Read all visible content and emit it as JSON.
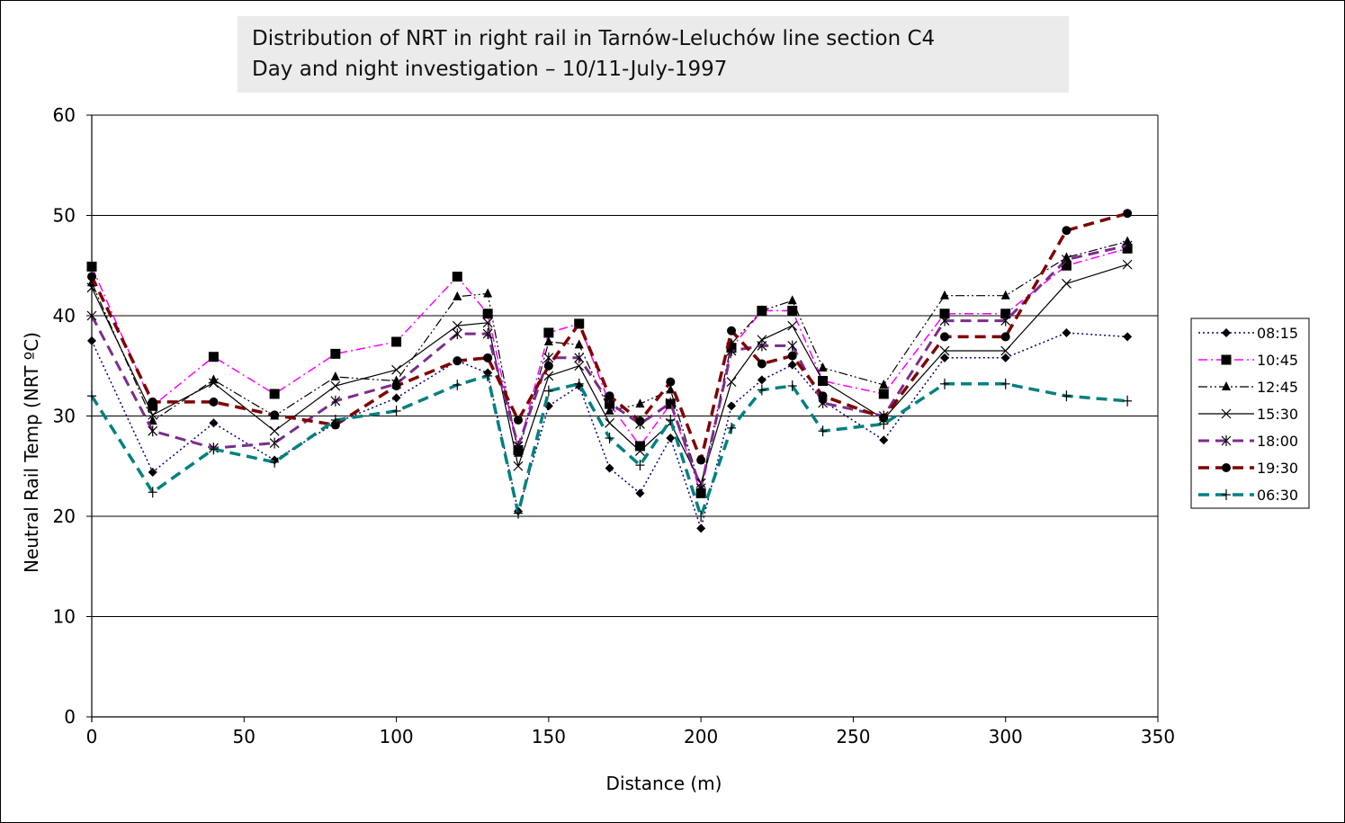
{
  "chart_data": {
    "type": "line",
    "title": "Distribution of NRT in right rail in Tarnów-Leluchów line section C4",
    "subtitle": "Day and night investigation – 10/11-July-1997",
    "xlabel": "Distance (m)",
    "ylabel": "Neutral Rail Temp (NRT ºC)",
    "xlim": [
      0,
      350
    ],
    "ylim": [
      0,
      60
    ],
    "xticks": [
      0,
      50,
      100,
      150,
      200,
      250,
      300,
      350
    ],
    "yticks": [
      0,
      10,
      20,
      30,
      40,
      50,
      60
    ],
    "grid": "horizontal",
    "legend_position": "right",
    "series": [
      {
        "name": "08:15",
        "color": "#000080",
        "marker": "diamond",
        "dash": "dotted",
        "width": 1.5,
        "points": [
          [
            0,
            37.5
          ],
          [
            20,
            24.4
          ],
          [
            40,
            29.3
          ],
          [
            60,
            25.6
          ],
          [
            80,
            29.3
          ],
          [
            100,
            31.8
          ],
          [
            120,
            35.5
          ],
          [
            130,
            34.3
          ],
          [
            140,
            20.5
          ],
          [
            150,
            31.0
          ],
          [
            160,
            33.0
          ],
          [
            170,
            24.8
          ],
          [
            180,
            22.3
          ],
          [
            190,
            27.8
          ],
          [
            200,
            18.8
          ],
          [
            210,
            31.0
          ],
          [
            220,
            33.6
          ],
          [
            230,
            35.1
          ],
          [
            240,
            31.5
          ],
          [
            260,
            27.6
          ],
          [
            280,
            35.8
          ],
          [
            300,
            35.8
          ],
          [
            320,
            38.3
          ],
          [
            340,
            37.9
          ]
        ]
      },
      {
        "name": "10:45",
        "color": "#ff00ff",
        "marker": "square",
        "dash": "dashdot",
        "width": 1.5,
        "points": [
          [
            0,
            44.9
          ],
          [
            20,
            31.0
          ],
          [
            40,
            35.9
          ],
          [
            60,
            32.2
          ],
          [
            80,
            36.2
          ],
          [
            100,
            37.4
          ],
          [
            120,
            43.9
          ],
          [
            130,
            40.2
          ],
          [
            140,
            26.6
          ],
          [
            150,
            38.3
          ],
          [
            160,
            39.2
          ],
          [
            170,
            31.2
          ],
          [
            180,
            27.0
          ],
          [
            190,
            31.2
          ],
          [
            200,
            22.3
          ],
          [
            210,
            36.8
          ],
          [
            220,
            40.5
          ],
          [
            230,
            40.5
          ],
          [
            240,
            33.5
          ],
          [
            260,
            32.2
          ],
          [
            280,
            40.2
          ],
          [
            300,
            40.2
          ],
          [
            320,
            45.0
          ],
          [
            340,
            46.7
          ]
        ]
      },
      {
        "name": "12:45",
        "color": "#000000",
        "marker": "triangle",
        "dash": "dashdotdot",
        "width": 1.2,
        "points": [
          [
            0,
            43.3
          ],
          [
            20,
            29.5
          ],
          [
            40,
            33.6
          ],
          [
            60,
            30.0
          ],
          [
            80,
            33.9
          ],
          [
            100,
            33.5
          ],
          [
            120,
            41.9
          ],
          [
            130,
            42.2
          ],
          [
            140,
            26.3
          ],
          [
            150,
            37.4
          ],
          [
            160,
            37.1
          ],
          [
            170,
            30.5
          ],
          [
            180,
            31.2
          ],
          [
            190,
            32.6
          ],
          [
            200,
            22.8
          ],
          [
            210,
            37.2
          ],
          [
            220,
            40.5
          ],
          [
            230,
            41.5
          ],
          [
            240,
            34.8
          ],
          [
            260,
            33.1
          ],
          [
            280,
            42.0
          ],
          [
            300,
            42.0
          ],
          [
            320,
            45.8
          ],
          [
            340,
            47.4
          ]
        ]
      },
      {
        "name": "15:30",
        "color": "#000000",
        "marker": "x",
        "dash": "solid",
        "width": 1.2,
        "points": [
          [
            0,
            42.8
          ],
          [
            20,
            30.1
          ],
          [
            40,
            33.3
          ],
          [
            60,
            28.5
          ],
          [
            80,
            33.0
          ],
          [
            100,
            34.6
          ],
          [
            120,
            39.0
          ],
          [
            130,
            39.3
          ],
          [
            140,
            25.0
          ],
          [
            150,
            34.0
          ],
          [
            160,
            35.0
          ],
          [
            170,
            29.3
          ],
          [
            180,
            26.5
          ],
          [
            190,
            29.3
          ],
          [
            200,
            23.3
          ],
          [
            210,
            33.4
          ],
          [
            220,
            37.6
          ],
          [
            230,
            39.0
          ],
          [
            240,
            33.5
          ],
          [
            260,
            29.7
          ],
          [
            280,
            36.5
          ],
          [
            300,
            36.5
          ],
          [
            320,
            43.2
          ],
          [
            340,
            45.1
          ]
        ]
      },
      {
        "name": "18:00",
        "color": "#7b2c8c",
        "marker": "star",
        "dash": "dashed",
        "width": 3,
        "points": [
          [
            0,
            40.0
          ],
          [
            20,
            28.5
          ],
          [
            40,
            26.8
          ],
          [
            60,
            27.3
          ],
          [
            80,
            31.5
          ],
          [
            100,
            33.2
          ],
          [
            120,
            38.2
          ],
          [
            130,
            38.2
          ],
          [
            140,
            27.0
          ],
          [
            150,
            35.8
          ],
          [
            160,
            35.8
          ],
          [
            170,
            31.3
          ],
          [
            180,
            29.2
          ],
          [
            190,
            31.3
          ],
          [
            200,
            22.8
          ],
          [
            210,
            36.5
          ],
          [
            220,
            37.0
          ],
          [
            230,
            37.0
          ],
          [
            240,
            31.3
          ],
          [
            260,
            30.0
          ],
          [
            280,
            39.5
          ],
          [
            300,
            39.5
          ],
          [
            320,
            45.6
          ],
          [
            340,
            47.0
          ]
        ]
      },
      {
        "name": "19:30",
        "color": "#7f0000",
        "marker": "circle",
        "dash": "dashed",
        "width": 3.5,
        "points": [
          [
            0,
            43.9
          ],
          [
            20,
            31.4
          ],
          [
            40,
            31.4
          ],
          [
            60,
            30.1
          ],
          [
            80,
            29.1
          ],
          [
            100,
            33.0
          ],
          [
            120,
            35.5
          ],
          [
            130,
            35.8
          ],
          [
            140,
            29.6
          ],
          [
            150,
            35.0
          ],
          [
            160,
            39.2
          ],
          [
            170,
            32.0
          ],
          [
            180,
            29.5
          ],
          [
            190,
            33.4
          ],
          [
            200,
            25.6
          ],
          [
            210,
            38.5
          ],
          [
            220,
            35.2
          ],
          [
            230,
            36.0
          ],
          [
            240,
            32.0
          ],
          [
            260,
            29.8
          ],
          [
            280,
            37.9
          ],
          [
            300,
            37.9
          ],
          [
            320,
            48.5
          ],
          [
            340,
            50.2
          ]
        ]
      },
      {
        "name": "06:30",
        "color": "#008080",
        "marker": "plus",
        "dash": "dashed",
        "width": 3.5,
        "points": [
          [
            0,
            32.0
          ],
          [
            20,
            22.4
          ],
          [
            40,
            26.7
          ],
          [
            60,
            25.4
          ],
          [
            80,
            29.6
          ],
          [
            100,
            30.5
          ],
          [
            120,
            33.1
          ],
          [
            130,
            34.0
          ],
          [
            140,
            20.3
          ],
          [
            150,
            32.5
          ],
          [
            160,
            33.2
          ],
          [
            170,
            27.8
          ],
          [
            180,
            25.1
          ],
          [
            190,
            29.6
          ],
          [
            200,
            20.0
          ],
          [
            210,
            28.8
          ],
          [
            220,
            32.6
          ],
          [
            230,
            33.0
          ],
          [
            240,
            28.5
          ],
          [
            260,
            29.2
          ],
          [
            280,
            33.2
          ],
          [
            300,
            33.2
          ],
          [
            320,
            32.0
          ],
          [
            340,
            31.5
          ]
        ]
      }
    ]
  }
}
